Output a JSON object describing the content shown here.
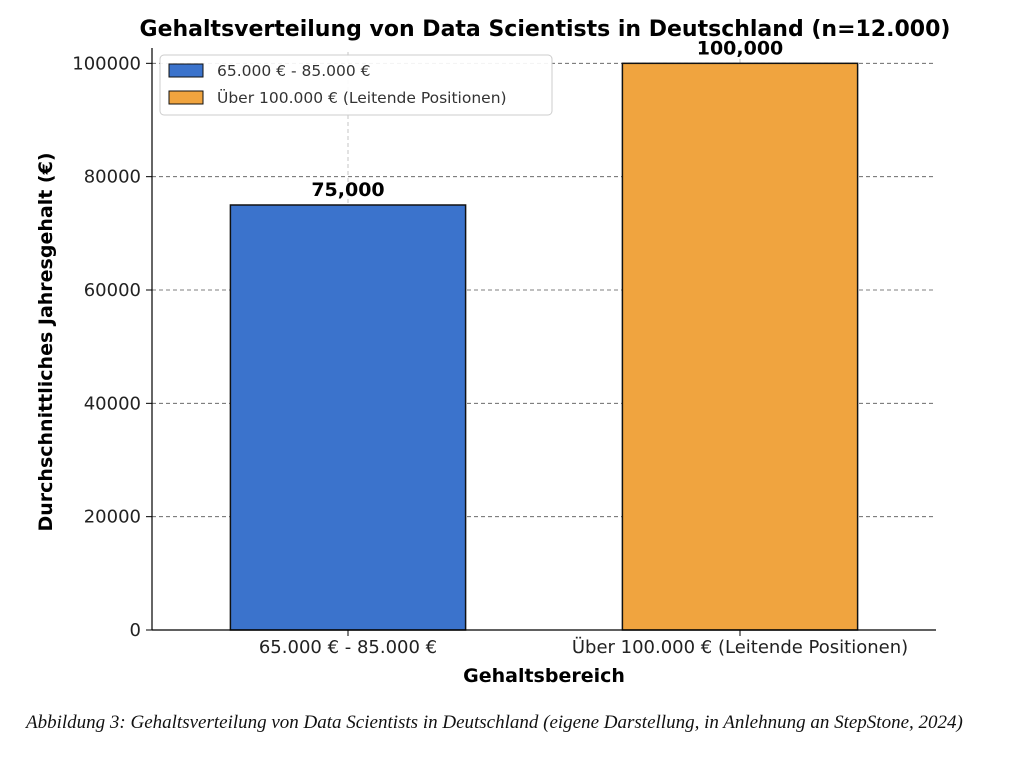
{
  "chart_data": {
    "type": "bar",
    "title": "Gehaltsverteilung von Data Scientists in Deutschland (n=12.000)",
    "xlabel": "Gehaltsbereich",
    "ylabel": "Durchschnittliches Jahresgehalt (€)",
    "categories": [
      "65.000 € - 85.000 €",
      "Über 100.000 € (Leitende Positionen)"
    ],
    "values": [
      75000,
      100000
    ],
    "value_labels": [
      "75,000",
      "100,000"
    ],
    "colors": [
      "#3b73cc",
      "#f0a43f"
    ],
    "ylim": [
      0,
      102000
    ],
    "yticks": [
      0,
      20000,
      40000,
      60000,
      80000,
      100000
    ],
    "ytick_labels": [
      "0",
      "20000",
      "40000",
      "60000",
      "80000",
      "100000"
    ],
    "grid": true,
    "legend": {
      "position": "top-left",
      "entries": [
        "65.000 € - 85.000 €",
        "Über 100.000 € (Leitende Positionen)"
      ]
    }
  },
  "caption": "Abbildung 3: Gehaltsverteilung von Data Scientists in Deutschland (eigene Darstellung, in Anlehnung an StepStone, 2024)"
}
